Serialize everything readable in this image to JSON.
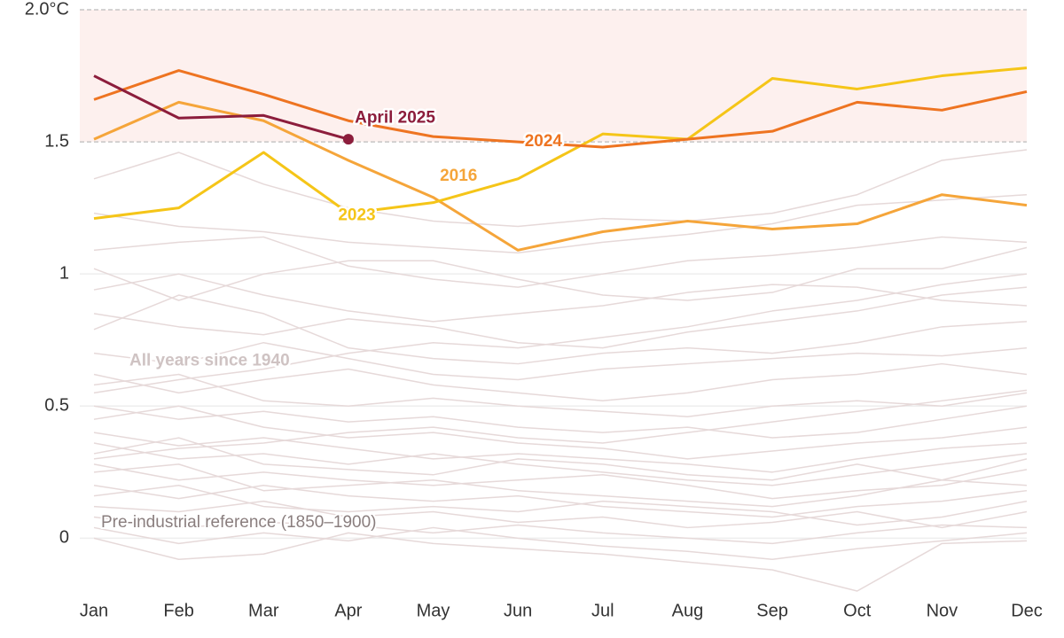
{
  "chart_data": {
    "type": "line",
    "categories": [
      "Jan",
      "Feb",
      "Mar",
      "Apr",
      "May",
      "Jun",
      "Jul",
      "Aug",
      "Sep",
      "Oct",
      "Nov",
      "Dec"
    ],
    "ylim": [
      -0.2,
      2.0
    ],
    "yticks": [
      0,
      0.5,
      1,
      1.5,
      {
        "value": 2,
        "label": "2.0°C"
      }
    ],
    "band": [
      1.5,
      2.0
    ],
    "band_color": "#fdf0ee",
    "annotation": "Pre-industrial reference (1850–1900)",
    "background": {
      "name": "All years since 1940",
      "color": "#e6d9d9",
      "lines": [
        [
          1.36,
          1.46,
          1.34,
          1.25,
          1.2,
          1.18,
          1.21,
          1.2,
          1.23,
          1.3,
          1.43,
          1.47
        ],
        [
          1.23,
          1.18,
          1.16,
          1.12,
          1.1,
          1.08,
          1.12,
          1.15,
          1.19,
          1.26,
          1.28,
          1.3
        ],
        [
          1.09,
          1.12,
          1.14,
          1.03,
          0.98,
          0.95,
          1.0,
          1.05,
          1.07,
          1.1,
          1.14,
          1.12
        ],
        [
          1.02,
          0.9,
          1.0,
          1.05,
          1.05,
          0.98,
          0.92,
          0.9,
          0.93,
          1.02,
          1.02,
          1.1
        ],
        [
          0.94,
          1.0,
          0.92,
          0.86,
          0.82,
          0.85,
          0.88,
          0.93,
          0.96,
          0.95,
          0.9,
          0.88
        ],
        [
          0.85,
          0.8,
          0.77,
          0.83,
          0.8,
          0.74,
          0.72,
          0.78,
          0.82,
          0.86,
          0.92,
          0.95
        ],
        [
          0.79,
          0.92,
          0.85,
          0.72,
          0.68,
          0.66,
          0.7,
          0.72,
          0.7,
          0.74,
          0.8,
          0.82
        ],
        [
          0.7,
          0.66,
          0.74,
          0.68,
          0.62,
          0.6,
          0.64,
          0.66,
          0.68,
          0.7,
          0.69,
          0.72
        ],
        [
          0.62,
          0.55,
          0.6,
          0.64,
          0.58,
          0.55,
          0.52,
          0.55,
          0.6,
          0.62,
          0.66,
          0.62
        ],
        [
          0.58,
          0.62,
          0.52,
          0.5,
          0.53,
          0.5,
          0.48,
          0.46,
          0.5,
          0.52,
          0.5,
          0.55
        ],
        [
          0.5,
          0.45,
          0.48,
          0.44,
          0.46,
          0.42,
          0.4,
          0.42,
          0.38,
          0.4,
          0.45,
          0.5
        ],
        [
          0.45,
          0.5,
          0.42,
          0.38,
          0.4,
          0.36,
          0.34,
          0.3,
          0.33,
          0.36,
          0.38,
          0.42
        ],
        [
          0.4,
          0.35,
          0.38,
          0.34,
          0.3,
          0.32,
          0.3,
          0.28,
          0.25,
          0.3,
          0.34,
          0.36
        ],
        [
          0.36,
          0.3,
          0.32,
          0.28,
          0.32,
          0.28,
          0.25,
          0.22,
          0.2,
          0.24,
          0.28,
          0.32
        ],
        [
          0.32,
          0.38,
          0.28,
          0.26,
          0.24,
          0.3,
          0.28,
          0.24,
          0.22,
          0.28,
          0.22,
          0.3
        ],
        [
          0.28,
          0.22,
          0.25,
          0.22,
          0.2,
          0.22,
          0.24,
          0.2,
          0.15,
          0.18,
          0.2,
          0.26
        ],
        [
          0.25,
          0.28,
          0.18,
          0.2,
          0.22,
          0.18,
          0.16,
          0.14,
          0.12,
          0.16,
          0.22,
          0.2
        ],
        [
          0.2,
          0.15,
          0.2,
          0.16,
          0.14,
          0.16,
          0.12,
          0.1,
          0.08,
          0.12,
          0.14,
          0.18
        ],
        [
          0.16,
          0.2,
          0.12,
          0.1,
          0.12,
          0.1,
          0.14,
          0.12,
          0.1,
          0.05,
          0.08,
          0.14
        ],
        [
          0.12,
          0.1,
          0.14,
          0.08,
          0.1,
          0.06,
          0.08,
          0.04,
          0.06,
          0.1,
          0.04,
          0.1
        ],
        [
          0.08,
          0.04,
          0.06,
          0.05,
          0.02,
          0.05,
          0.02,
          0.0,
          -0.02,
          0.02,
          0.05,
          0.04
        ],
        [
          0.04,
          -0.02,
          0.02,
          -0.01,
          0.04,
          0.0,
          -0.03,
          -0.05,
          -0.08,
          -0.04,
          -0.01,
          0.02
        ],
        [
          0.0,
          -0.08,
          -0.06,
          0.02,
          -0.02,
          -0.04,
          -0.06,
          -0.09,
          -0.12,
          -0.2,
          -0.02,
          -0.01
        ],
        [
          0.3,
          0.34,
          0.36,
          0.4,
          0.42,
          0.38,
          0.36,
          0.4,
          0.44,
          0.48,
          0.52,
          0.56
        ],
        [
          0.55,
          0.6,
          0.64,
          0.7,
          0.74,
          0.72,
          0.76,
          0.8,
          0.86,
          0.9,
          0.96,
          1.0
        ]
      ]
    },
    "series": [
      {
        "name": "2016",
        "color": "#f5a53a",
        "values": [
          1.51,
          1.65,
          1.58,
          1.43,
          1.29,
          1.09,
          1.16,
          1.2,
          1.17,
          1.19,
          1.3,
          1.26
        ]
      },
      {
        "name": "2023",
        "color": "#f5c518",
        "values": [
          1.21,
          1.25,
          1.46,
          1.23,
          1.27,
          1.36,
          1.53,
          1.51,
          1.74,
          1.7,
          1.75,
          1.78
        ]
      },
      {
        "name": "2024",
        "color": "#ee7421",
        "values": [
          1.66,
          1.77,
          1.68,
          1.58,
          1.52,
          1.5,
          1.48,
          1.51,
          1.54,
          1.65,
          1.62,
          1.69
        ]
      },
      {
        "name": "April 2025",
        "color": "#8c1d3c",
        "values": [
          1.75,
          1.59,
          1.6,
          1.51,
          null,
          null,
          null,
          null,
          null,
          null,
          null,
          null
        ]
      }
    ]
  }
}
